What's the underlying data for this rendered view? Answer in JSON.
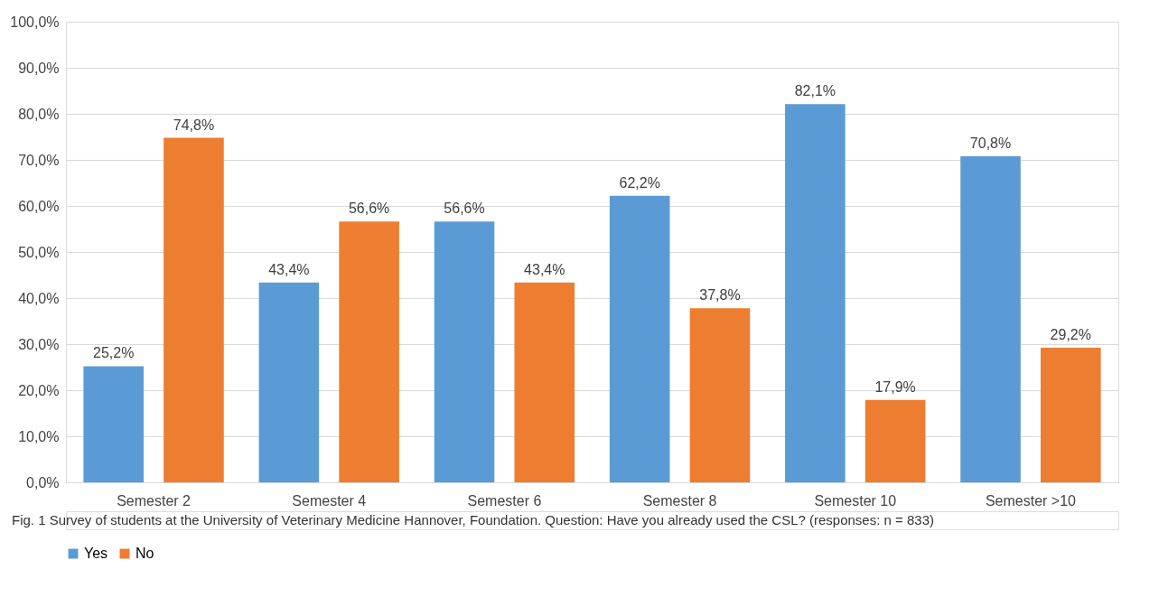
{
  "chart_data": {
    "type": "bar",
    "categories": [
      "Semester 2",
      "Semester 4",
      "Semester 6",
      "Semester 8",
      "Semester 10",
      "Semester >10"
    ],
    "series": [
      {
        "name": "Yes",
        "color": "#5b9bd5",
        "values": [
          25.2,
          43.4,
          56.6,
          62.2,
          82.1,
          70.8
        ],
        "value_labels": [
          "25,2%",
          "43,4%",
          "56,6%",
          "62,2%",
          "82,1%",
          "70,8%"
        ]
      },
      {
        "name": "No",
        "color": "#ed7d31",
        "values": [
          74.8,
          56.6,
          43.4,
          37.8,
          17.9,
          29.2
        ],
        "value_labels": [
          "74,8%",
          "56,6%",
          "43,4%",
          "37,8%",
          "17,9%",
          "29,2%"
        ]
      }
    ],
    "ylim": [
      0,
      100
    ],
    "yticks": [
      {
        "value": 0,
        "label": "0,0%"
      },
      {
        "value": 10,
        "label": "10,0%"
      },
      {
        "value": 20,
        "label": "20,0%"
      },
      {
        "value": 30,
        "label": "30,0%"
      },
      {
        "value": 40,
        "label": "40,0%"
      },
      {
        "value": 50,
        "label": "50,0%"
      },
      {
        "value": 60,
        "label": "60,0%"
      },
      {
        "value": 70,
        "label": "70,0%"
      },
      {
        "value": 80,
        "label": "80,0%"
      },
      {
        "value": 90,
        "label": "90,0%"
      },
      {
        "value": 100,
        "label": "100,0%"
      }
    ],
    "grid": "y",
    "legend": "bottom",
    "annotations": [
      "Fig. 1 Survey of students at the University of Veterinary Medicine Hannover, Foundation. Question: Have you already used the CSL? (responses: n = 833)"
    ]
  }
}
